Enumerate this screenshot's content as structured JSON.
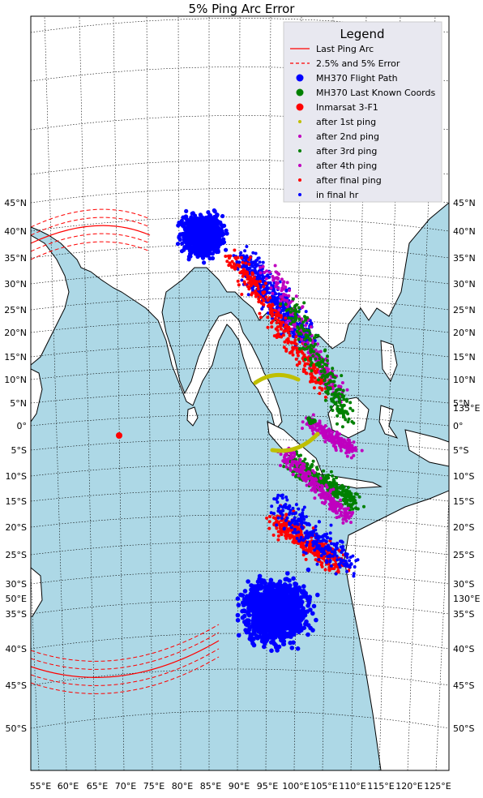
{
  "title": "5% Ping Arc Error",
  "colors": {
    "ocean": "#add8e6",
    "land": "#ffffff",
    "flight_path": "#0000ff",
    "last_known": "#008000",
    "inmarsat": "#ff0000",
    "ping_arc": "#ff0000",
    "after_1st": "#bfbf00",
    "after_2nd": "#bf00bf",
    "after_3rd": "#008000",
    "after_4th": "#bf00bf",
    "after_final": "#ff0000",
    "final_hr": "#0000ff",
    "legend_bg": "#e8e8f0"
  },
  "legend": {
    "title": "Legend",
    "items": [
      {
        "label": "Last Ping Arc",
        "marker": "line-solid",
        "color": "#ff0000"
      },
      {
        "label": "2.5% and 5% Error",
        "marker": "line-dashed",
        "color": "#ff0000"
      },
      {
        "label": "MH370 Flight Path",
        "marker": "dot-large",
        "color": "#0000ff"
      },
      {
        "label": "MH370 Last Known Coords",
        "marker": "dot-large",
        "color": "#008000"
      },
      {
        "label": "Inmarsat 3-F1",
        "marker": "dot-large",
        "color": "#ff0000"
      },
      {
        "label": "after 1st ping",
        "marker": "dot-small",
        "color": "#bfbf00"
      },
      {
        "label": "after 2nd ping",
        "marker": "dot-small",
        "color": "#bf00bf"
      },
      {
        "label": "after 3rd ping",
        "marker": "dot-small",
        "color": "#008000"
      },
      {
        "label": "after 4th ping",
        "marker": "dot-small",
        "color": "#bf00bf"
      },
      {
        "label": "after final ping",
        "marker": "dot-small",
        "color": "#ff0000"
      },
      {
        "label": "in final hr",
        "marker": "dot-small",
        "color": "#0000ff"
      }
    ]
  },
  "lat_labels": [
    "45°N",
    "40°N",
    "35°N",
    "30°N",
    "25°N",
    "20°N",
    "15°N",
    "10°N",
    "5°N",
    "0°",
    "5°S",
    "10°S",
    "15°S",
    "20°S",
    "25°S",
    "30°S",
    "35°S",
    "40°S",
    "45°S",
    "50°S"
  ],
  "right_extra_labels": [
    "135°E",
    "130°E"
  ],
  "left_extra_labels": [
    "50°E"
  ],
  "lon_labels": [
    "55°E",
    "60°E",
    "65°E",
    "70°E",
    "75°E",
    "80°E",
    "85°E",
    "90°E",
    "95°E",
    "100°E",
    "105°E",
    "110°E",
    "115°E",
    "120°E",
    "125°E"
  ],
  "map_data": {
    "projection": "lambert-conformal",
    "lon_range": [
      55,
      125
    ],
    "lat_range": [
      -55,
      50
    ],
    "inmarsat_position": {
      "lon": 64.5,
      "lat": 0
    },
    "clusters": [
      {
        "name": "north-blue",
        "color": "#0000ff",
        "center": {
          "lon": 85,
          "lat": 39
        }
      },
      {
        "name": "south-blue",
        "color": "#0000ff",
        "center": {
          "lon": 95,
          "lat": -35
        }
      }
    ]
  }
}
